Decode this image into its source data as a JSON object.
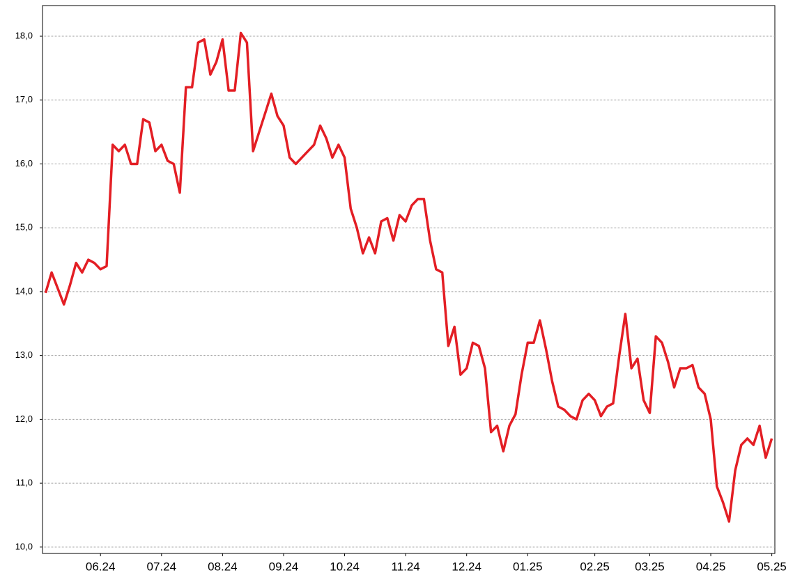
{
  "chart_data": {
    "type": "line",
    "categories": [
      null,
      null,
      null,
      null,
      null,
      null,
      null,
      null,
      null,
      "06.24",
      null,
      null,
      null,
      null,
      null,
      null,
      null,
      null,
      null,
      "07.24",
      null,
      null,
      null,
      null,
      null,
      null,
      null,
      null,
      null,
      "08.24",
      null,
      null,
      null,
      null,
      null,
      null,
      null,
      null,
      null,
      "09.24",
      null,
      null,
      null,
      null,
      null,
      null,
      null,
      null,
      null,
      "10.24",
      null,
      null,
      null,
      null,
      null,
      null,
      null,
      null,
      null,
      "11.24",
      null,
      null,
      null,
      null,
      null,
      null,
      null,
      null,
      null,
      "12.24",
      null,
      null,
      null,
      null,
      null,
      null,
      null,
      null,
      null,
      "01.25",
      null,
      null,
      null,
      null,
      null,
      null,
      null,
      null,
      null,
      null,
      "02.25",
      null,
      null,
      null,
      null,
      null,
      null,
      null,
      null,
      "03.25",
      null,
      null,
      null,
      null,
      null,
      null,
      null,
      null,
      null,
      "04.25",
      null,
      null,
      null,
      null,
      null,
      null,
      null,
      null,
      null,
      "05.25"
    ],
    "series": [
      {
        "color": "#e31e24",
        "values": [
          13.98,
          14.3,
          14.05,
          13.8,
          14.1,
          14.45,
          14.3,
          14.5,
          14.45,
          14.35,
          14.4,
          16.3,
          16.2,
          16.3,
          16.0,
          16.0,
          16.7,
          16.65,
          16.2,
          16.3,
          16.05,
          16.0,
          15.55,
          17.2,
          17.2,
          17.9,
          17.95,
          17.4,
          17.6,
          17.95,
          17.15,
          17.15,
          18.05,
          17.9,
          16.2,
          16.5,
          16.8,
          17.1,
          16.75,
          16.6,
          16.1,
          16.0,
          16.1,
          16.2,
          16.3,
          16.6,
          16.4,
          16.1,
          16.3,
          16.1,
          15.3,
          15.0,
          14.6,
          14.85,
          14.6,
          15.1,
          15.15,
          14.8,
          15.2,
          15.1,
          15.35,
          15.45,
          15.45,
          14.8,
          14.35,
          14.3,
          13.15,
          13.45,
          12.7,
          12.8,
          13.2,
          13.15,
          12.8,
          11.8,
          11.9,
          11.5,
          11.9,
          12.08,
          12.7,
          13.2,
          13.2,
          13.55,
          13.1,
          12.6,
          12.2,
          12.15,
          12.05,
          12.0,
          12.3,
          12.4,
          12.3,
          12.05,
          12.2,
          12.25,
          13.0,
          13.65,
          12.8,
          12.95,
          12.3,
          12.1,
          13.3,
          13.2,
          12.9,
          12.5,
          12.8,
          12.8,
          12.85,
          12.5,
          12.4,
          12.0,
          10.95,
          10.7,
          10.4,
          11.2,
          11.6,
          11.7,
          11.6,
          11.9,
          11.4,
          11.7
        ]
      }
    ],
    "ylim": [
      9.9,
      18.48
    ],
    "yticks": [
      {
        "value": 10,
        "label": "10,0"
      },
      {
        "value": 11,
        "label": "11,0"
      },
      {
        "value": 12,
        "label": "12,0"
      },
      {
        "value": 13,
        "label": "13,0"
      },
      {
        "value": 14,
        "label": "14,0"
      },
      {
        "value": 15,
        "label": "15,0"
      },
      {
        "value": 16,
        "label": "16,0"
      },
      {
        "value": 17,
        "label": "17,0"
      },
      {
        "value": 18,
        "label": "18,0"
      }
    ],
    "grid": true
  }
}
